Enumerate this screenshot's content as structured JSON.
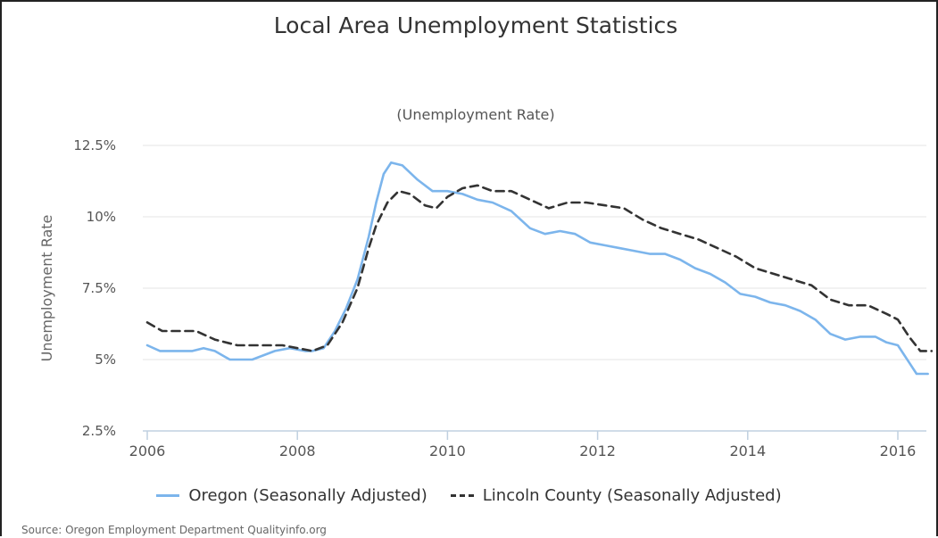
{
  "title": "Local Area Unemployment Statistics",
  "subtitle": "(Unemployment Rate)",
  "source": "Source: Oregon Employment Department Qualityinfo.org",
  "chart_data": {
    "type": "line",
    "ylabel": "Unemployment Rate",
    "xlabel": "",
    "ylim": [
      2.5,
      12.5
    ],
    "xlim": [
      2006,
      2016.5
    ],
    "yticks": [
      "12.5%",
      "10%",
      "7.5%",
      "5%",
      "2.5%"
    ],
    "ytick_values": [
      12.5,
      10,
      7.5,
      5,
      2.5
    ],
    "xticks": [
      "2006",
      "2008",
      "2010",
      "2012",
      "2014",
      "2016"
    ],
    "xtick_values": [
      2006,
      2008,
      2010,
      2012,
      2014,
      2016
    ],
    "grid": true,
    "legend_position": "bottom-center",
    "series": [
      {
        "name": "Oregon (Seasonally Adjusted)",
        "color": "#7cb5ec",
        "style": "solid",
        "points": [
          [
            2006.0,
            5.5
          ],
          [
            2006.17,
            5.3
          ],
          [
            2006.4,
            5.3
          ],
          [
            2006.6,
            5.3
          ],
          [
            2006.75,
            5.4
          ],
          [
            2006.9,
            5.3
          ],
          [
            2007.1,
            5.0
          ],
          [
            2007.4,
            5.0
          ],
          [
            2007.7,
            5.3
          ],
          [
            2007.9,
            5.4
          ],
          [
            2008.1,
            5.3
          ],
          [
            2008.2,
            5.3
          ],
          [
            2008.35,
            5.4
          ],
          [
            2008.5,
            6.0
          ],
          [
            2008.65,
            6.8
          ],
          [
            2008.8,
            7.8
          ],
          [
            2008.95,
            9.3
          ],
          [
            2009.05,
            10.5
          ],
          [
            2009.15,
            11.5
          ],
          [
            2009.25,
            11.9
          ],
          [
            2009.4,
            11.8
          ],
          [
            2009.6,
            11.3
          ],
          [
            2009.8,
            10.9
          ],
          [
            2010.0,
            10.9
          ],
          [
            2010.2,
            10.8
          ],
          [
            2010.4,
            10.6
          ],
          [
            2010.6,
            10.5
          ],
          [
            2010.85,
            10.2
          ],
          [
            2011.1,
            9.6
          ],
          [
            2011.3,
            9.4
          ],
          [
            2011.5,
            9.5
          ],
          [
            2011.7,
            9.4
          ],
          [
            2011.9,
            9.1
          ],
          [
            2012.1,
            9.0
          ],
          [
            2012.3,
            8.9
          ],
          [
            2012.5,
            8.8
          ],
          [
            2012.7,
            8.7
          ],
          [
            2012.9,
            8.7
          ],
          [
            2013.1,
            8.5
          ],
          [
            2013.3,
            8.2
          ],
          [
            2013.5,
            8.0
          ],
          [
            2013.7,
            7.7
          ],
          [
            2013.9,
            7.3
          ],
          [
            2014.1,
            7.2
          ],
          [
            2014.3,
            7.0
          ],
          [
            2014.5,
            6.9
          ],
          [
            2014.7,
            6.7
          ],
          [
            2014.9,
            6.4
          ],
          [
            2015.1,
            5.9
          ],
          [
            2015.3,
            5.7
          ],
          [
            2015.5,
            5.8
          ],
          [
            2015.7,
            5.8
          ],
          [
            2015.85,
            5.6
          ],
          [
            2016.0,
            5.5
          ],
          [
            2016.15,
            4.9
          ],
          [
            2016.25,
            4.5
          ],
          [
            2016.4,
            4.5
          ]
        ]
      },
      {
        "name": "Lincoln County (Seasonally Adjusted)",
        "color": "#333333",
        "style": "dashed",
        "points": [
          [
            2006.0,
            6.3
          ],
          [
            2006.2,
            6.0
          ],
          [
            2006.4,
            6.0
          ],
          [
            2006.65,
            6.0
          ],
          [
            2006.9,
            5.7
          ],
          [
            2007.2,
            5.5
          ],
          [
            2007.5,
            5.5
          ],
          [
            2007.8,
            5.5
          ],
          [
            2008.0,
            5.4
          ],
          [
            2008.2,
            5.3
          ],
          [
            2008.4,
            5.5
          ],
          [
            2008.6,
            6.3
          ],
          [
            2008.8,
            7.5
          ],
          [
            2008.95,
            8.9
          ],
          [
            2009.05,
            9.7
          ],
          [
            2009.2,
            10.5
          ],
          [
            2009.35,
            10.9
          ],
          [
            2009.5,
            10.8
          ],
          [
            2009.7,
            10.4
          ],
          [
            2009.85,
            10.3
          ],
          [
            2010.0,
            10.7
          ],
          [
            2010.2,
            11.0
          ],
          [
            2010.4,
            11.1
          ],
          [
            2010.6,
            10.9
          ],
          [
            2010.85,
            10.9
          ],
          [
            2011.1,
            10.6
          ],
          [
            2011.35,
            10.3
          ],
          [
            2011.6,
            10.5
          ],
          [
            2011.85,
            10.5
          ],
          [
            2012.1,
            10.4
          ],
          [
            2012.35,
            10.3
          ],
          [
            2012.6,
            9.9
          ],
          [
            2012.85,
            9.6
          ],
          [
            2013.1,
            9.4
          ],
          [
            2013.35,
            9.2
          ],
          [
            2013.6,
            8.9
          ],
          [
            2013.85,
            8.6
          ],
          [
            2014.1,
            8.2
          ],
          [
            2014.35,
            8.0
          ],
          [
            2014.6,
            7.8
          ],
          [
            2014.85,
            7.6
          ],
          [
            2015.1,
            7.1
          ],
          [
            2015.35,
            6.9
          ],
          [
            2015.6,
            6.9
          ],
          [
            2015.85,
            6.6
          ],
          [
            2016.0,
            6.4
          ],
          [
            2016.15,
            5.8
          ],
          [
            2016.3,
            5.3
          ],
          [
            2016.45,
            5.3
          ]
        ]
      }
    ]
  }
}
